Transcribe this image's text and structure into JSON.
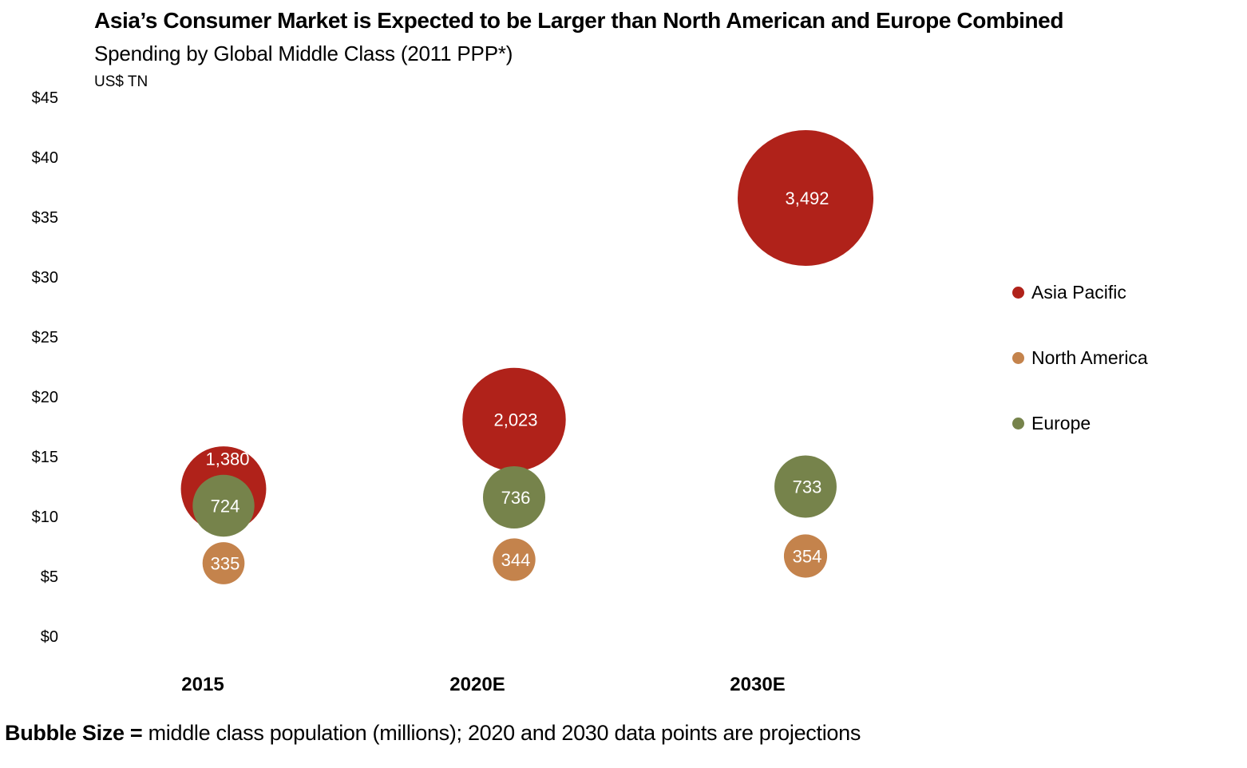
{
  "chart_data": {
    "type": "bubble",
    "title": "Asia’s Consumer Market is Expected to be Larger than North American and Europe Combined",
    "subtitle": "Spending by Global Middle Class (2011 PPP*)",
    "ylabel": "US$ TN",
    "xlabel": "",
    "ylim": [
      0,
      45
    ],
    "yticks": [
      0,
      5,
      10,
      15,
      20,
      25,
      30,
      35,
      40,
      45
    ],
    "ytick_labels": [
      "$0",
      "$5",
      "$10",
      "$15",
      "$20",
      "$25",
      "$30",
      "$35",
      "$40",
      "$45"
    ],
    "categories": [
      "2015",
      "2020E",
      "2030E"
    ],
    "grid": false,
    "legend_position": "right",
    "series": [
      {
        "name": "Asia Pacific",
        "color": "#B0221A",
        "y": [
          12.3,
          18.1,
          36.6
        ],
        "size": [
          1380,
          2023,
          3492
        ],
        "labels": [
          "1,380",
          "2,023",
          "3,492"
        ]
      },
      {
        "name": "Europe",
        "color": "#76834B",
        "y": [
          10.9,
          11.6,
          12.5
        ],
        "size": [
          724,
          736,
          733
        ],
        "labels": [
          "724",
          "736",
          "733"
        ]
      },
      {
        "name": "North America",
        "color": "#C4834C",
        "y": [
          6.1,
          6.4,
          6.7
        ],
        "size": [
          335,
          344,
          354
        ],
        "labels": [
          "335",
          "344",
          "354"
        ]
      }
    ],
    "legend": [
      {
        "name": "Asia Pacific",
        "color": "#B0221A"
      },
      {
        "name": "North America",
        "color": "#C4834C"
      },
      {
        "name": "Europe",
        "color": "#76834B"
      }
    ],
    "size_note": "middle class population (millions)"
  },
  "footnote": {
    "bold": "Bubble Size = ",
    "text": "middle class population (millions); 2020 and 2030 data points are projections"
  }
}
